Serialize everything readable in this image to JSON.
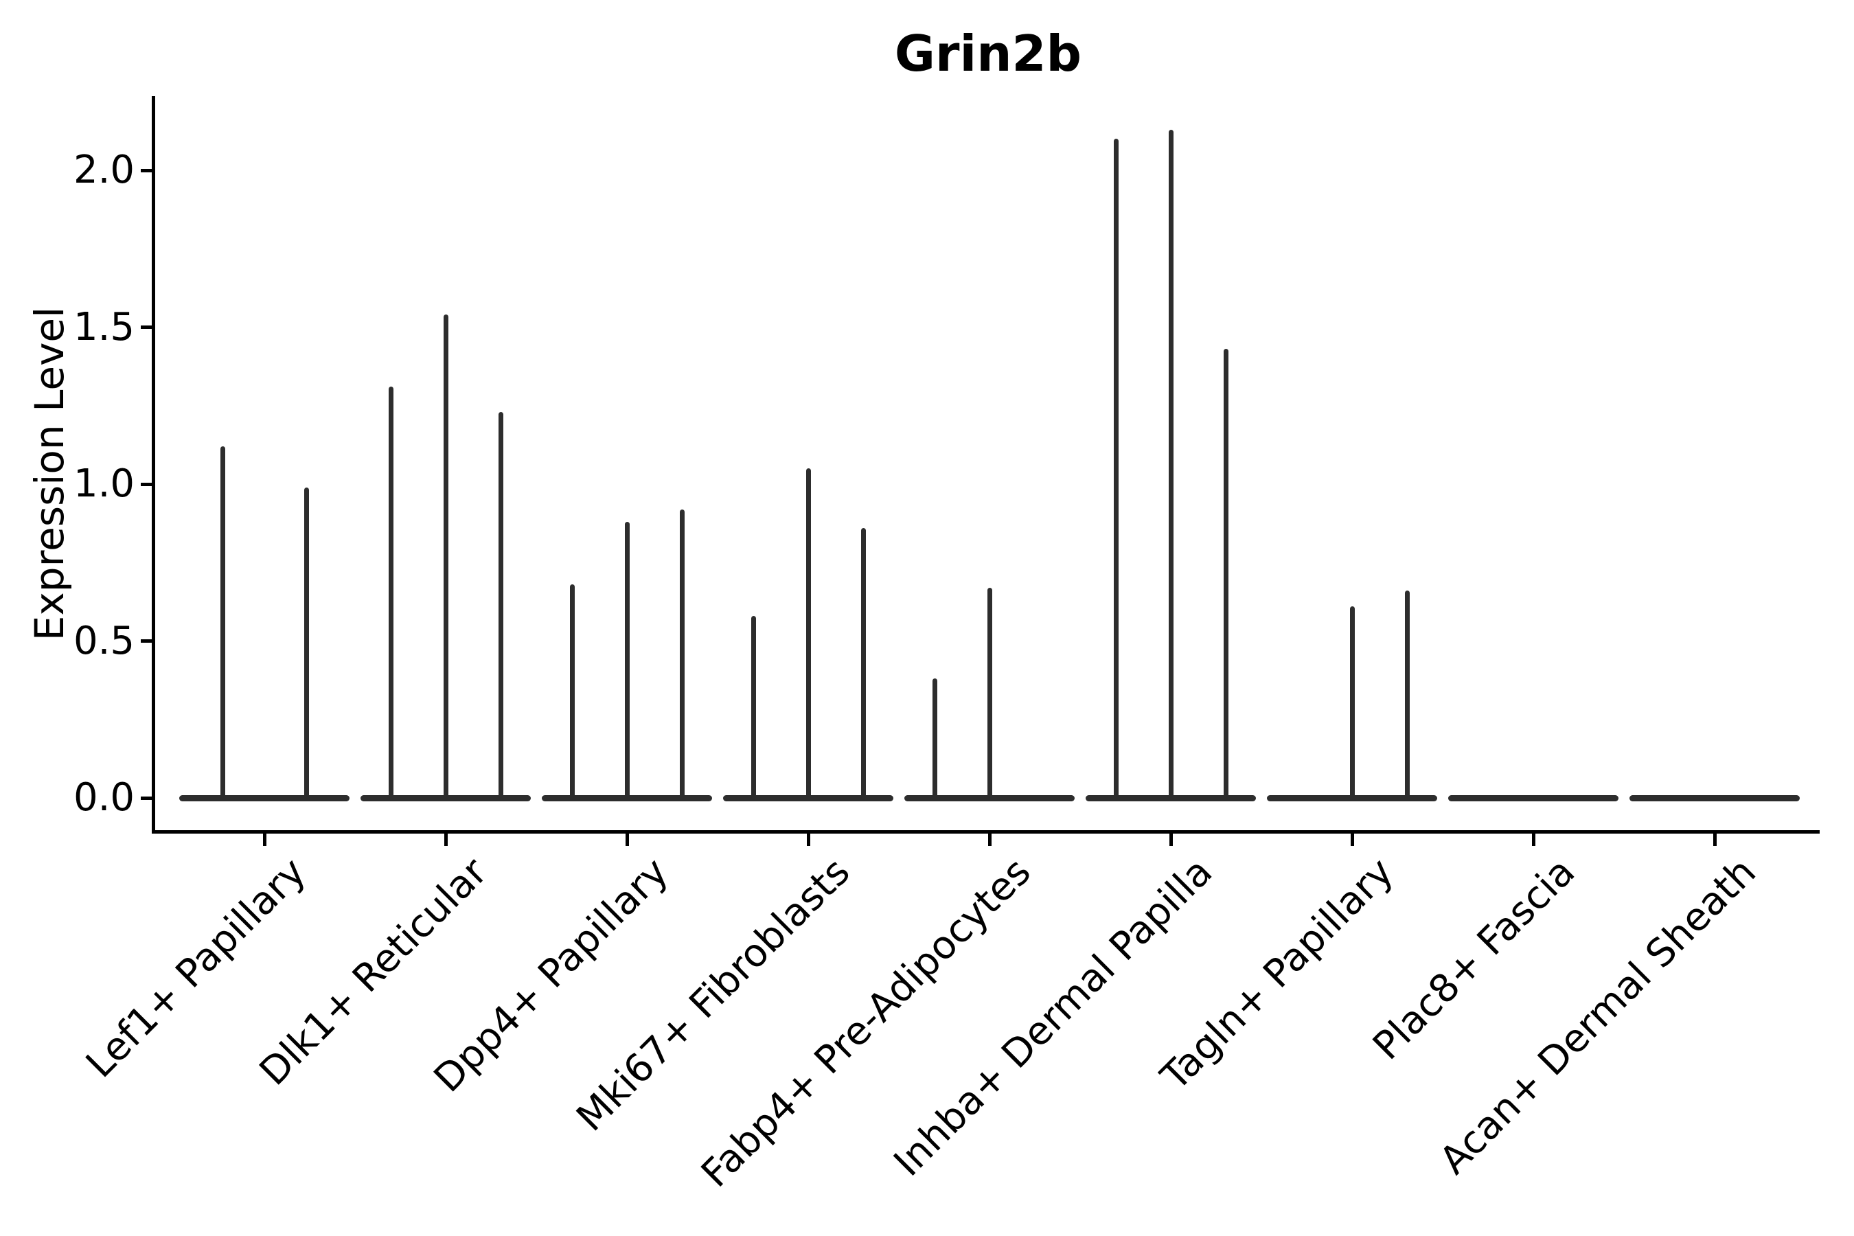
{
  "chart_data": {
    "type": "violin",
    "title": "Grin2b",
    "ylabel": "Expression Level",
    "xlabel": "",
    "ylim": [
      0,
      2.24
    ],
    "yticks": [
      0.0,
      0.5,
      1.0,
      1.5,
      2.0
    ],
    "grid": false,
    "legend": "none",
    "violin_color": "#2d2d2d",
    "axis_color": "#000000",
    "description": "Violin plot of Grin2b expression; each cell-type group contains up to three very thin violins (flat at 0 with a narrow spike to the maximum expression).",
    "categories": [
      {
        "name": "Lef1+ Papillary",
        "violin_maxima": [
          1.12,
          0.99
        ]
      },
      {
        "name": "Dlk1+ Reticular",
        "violin_maxima": [
          1.31,
          1.54,
          1.23
        ]
      },
      {
        "name": "Dpp4+ Papillary",
        "violin_maxima": [
          0.68,
          0.88,
          0.92
        ]
      },
      {
        "name": "Mki67+ Fibroblasts",
        "violin_maxima": [
          0.58,
          1.05,
          0.86
        ]
      },
      {
        "name": "Fabp4+ Pre-Adipocytes",
        "violin_maxima": [
          0.38,
          0.67,
          0.0
        ]
      },
      {
        "name": "Inhba+ Dermal Papilla",
        "violin_maxima": [
          2.1,
          2.13,
          1.43
        ]
      },
      {
        "name": "Tagln+ Papillary",
        "violin_maxima": [
          0.0,
          0.61,
          0.66
        ]
      },
      {
        "name": "Plac8+ Fascia",
        "violin_maxima": [
          0.0,
          0.0,
          0.0
        ]
      },
      {
        "name": "Acan+ Dermal Sheath",
        "violin_maxima": [
          0.0,
          0.0,
          0.0
        ]
      }
    ]
  }
}
